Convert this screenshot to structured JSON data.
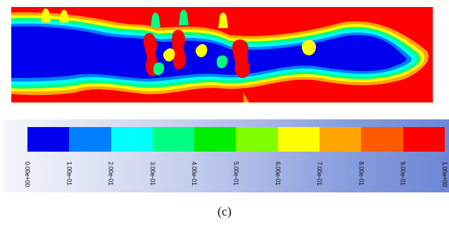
{
  "figure": {
    "caption": "(c)"
  },
  "legend": {
    "colors": [
      "#0000ee",
      "#0080ff",
      "#00ffff",
      "#00ff80",
      "#00ee00",
      "#80ff00",
      "#ffff00",
      "#ffa500",
      "#ff5a00",
      "#ff0000"
    ],
    "ticks": [
      "0.00e+00",
      "1.00e-01",
      "2.00e-01",
      "3.00e-01",
      "4.00e-01",
      "5.00e-01",
      "6.00e-01",
      "7.00e-01",
      "8.00e-01",
      "9.00e-01",
      "1.00e+00"
    ]
  },
  "contour": {
    "background_color": "#ff0000",
    "core_color": "#0000ee"
  }
}
